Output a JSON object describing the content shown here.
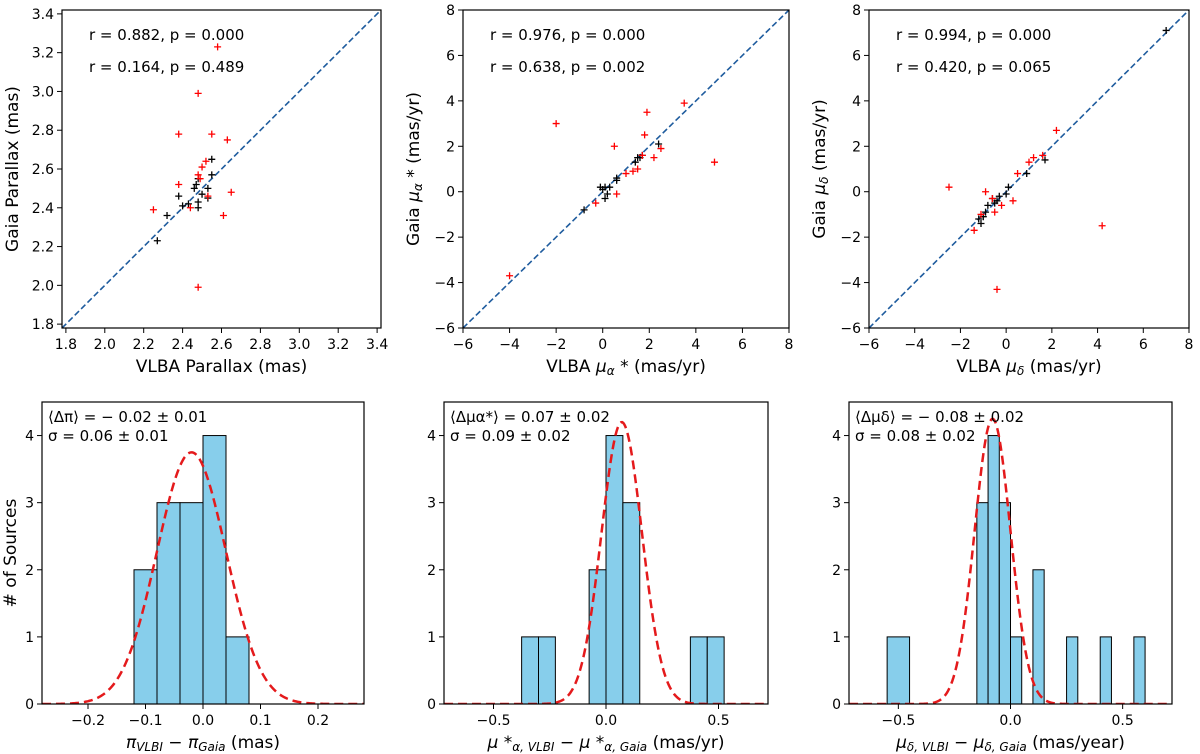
{
  "chart_data": [
    {
      "type": "scatter",
      "xlabel": "VLBA Parallax (mas)",
      "ylabel": "Gaia Parallax (mas)",
      "xlim": [
        1.78,
        3.42
      ],
      "ylim": [
        1.78,
        3.42
      ],
      "xticks": [
        "1.8",
        "2.0",
        "2.2",
        "2.4",
        "2.6",
        "2.8",
        "3.0",
        "3.2",
        "3.4"
      ],
      "yticks": [
        "1.8",
        "2.0",
        "2.2",
        "2.4",
        "2.6",
        "2.8",
        "3.0",
        "3.2",
        "3.4"
      ],
      "annotations": [
        {
          "text": "r = 0.882, p = 0.000",
          "color": "#000000"
        },
        {
          "text": "r = 0.164, p = 0.489",
          "color": "#ff0000"
        }
      ],
      "identity_line": true,
      "series": [
        {
          "color": "#000000",
          "marker": "+",
          "points": [
            [
              2.27,
              2.23
            ],
            [
              2.32,
              2.36
            ],
            [
              2.38,
              2.46
            ],
            [
              2.4,
              2.41
            ],
            [
              2.43,
              2.42
            ],
            [
              2.46,
              2.5
            ],
            [
              2.47,
              2.52
            ],
            [
              2.48,
              2.55
            ],
            [
              2.48,
              2.43
            ],
            [
              2.48,
              2.4
            ],
            [
              2.5,
              2.47
            ],
            [
              2.53,
              2.5
            ],
            [
              2.53,
              2.45
            ],
            [
              2.55,
              2.57
            ],
            [
              2.55,
              2.65
            ]
          ]
        },
        {
          "color": "#ff0000",
          "marker": "+",
          "points": [
            [
              2.25,
              2.39
            ],
            [
              2.38,
              2.52
            ],
            [
              2.38,
              2.78
            ],
            [
              2.44,
              2.4
            ],
            [
              2.48,
              2.99
            ],
            [
              2.48,
              1.99
            ],
            [
              2.48,
              2.57
            ],
            [
              2.49,
              2.55
            ],
            [
              2.5,
              2.61
            ],
            [
              2.52,
              2.64
            ],
            [
              2.53,
              2.46
            ],
            [
              2.55,
              2.78
            ],
            [
              2.58,
              3.23
            ],
            [
              2.61,
              2.36
            ],
            [
              2.63,
              2.75
            ],
            [
              2.65,
              2.48
            ]
          ]
        }
      ]
    },
    {
      "type": "scatter",
      "xlabel": "VLBA μα* (mas/yr)",
      "ylabel": "Gaia μα* (mas/yr)",
      "xlim": [
        -6,
        8
      ],
      "ylim": [
        -6,
        8
      ],
      "xticks": [
        "−6",
        "−4",
        "−2",
        "0",
        "2",
        "4",
        "6",
        "8"
      ],
      "yticks": [
        "−6",
        "−4",
        "−2",
        "0",
        "2",
        "4",
        "6",
        "8"
      ],
      "annotations": [
        {
          "text": "r = 0.976, p = 0.000",
          "color": "#000000"
        },
        {
          "text": "r = 0.638, p = 0.002",
          "color": "#ff0000"
        }
      ],
      "identity_line": true,
      "series": [
        {
          "color": "#000000",
          "marker": "+",
          "points": [
            [
              -0.8,
              -0.8
            ],
            [
              -0.1,
              0.2
            ],
            [
              0.0,
              0.1
            ],
            [
              0.1,
              0.2
            ],
            [
              0.3,
              0.2
            ],
            [
              0.1,
              -0.3
            ],
            [
              0.6,
              0.5
            ],
            [
              0.6,
              0.6
            ],
            [
              1.4,
              1.3
            ],
            [
              1.5,
              1.5
            ],
            [
              1.6,
              1.5
            ],
            [
              1.7,
              1.6
            ],
            [
              2.4,
              2.1
            ],
            [
              0.2,
              -0.1
            ]
          ]
        },
        {
          "color": "#ff0000",
          "marker": "+",
          "points": [
            [
              -4.0,
              -3.7
            ],
            [
              -2.0,
              3.0
            ],
            [
              -0.3,
              -0.5
            ],
            [
              0.5,
              2.0
            ],
            [
              0.6,
              -0.1
            ],
            [
              1.0,
              0.8
            ],
            [
              1.3,
              0.9
            ],
            [
              1.5,
              1.0
            ],
            [
              1.8,
              2.5
            ],
            [
              1.9,
              3.5
            ],
            [
              2.2,
              1.5
            ],
            [
              2.5,
              1.9
            ],
            [
              3.5,
              3.9
            ],
            [
              4.8,
              1.3
            ],
            [
              1.7,
              1.6
            ]
          ]
        }
      ]
    },
    {
      "type": "scatter",
      "xlabel": "VLBA μδ (mas/yr)",
      "ylabel": "Gaia μδ (mas/yr)",
      "xlim": [
        -6,
        8
      ],
      "ylim": [
        -6,
        8
      ],
      "xticks": [
        "−6",
        "−4",
        "−2",
        "0",
        "2",
        "4",
        "6",
        "8"
      ],
      "yticks": [
        "−6",
        "−4",
        "−2",
        "0",
        "2",
        "4",
        "6",
        "8"
      ],
      "annotations": [
        {
          "text": "r = 0.994, p = 0.000",
          "color": "#000000"
        },
        {
          "text": "r = 0.420, p = 0.065",
          "color": "#ff0000"
        }
      ],
      "identity_line": true,
      "series": [
        {
          "color": "#000000",
          "marker": "+",
          "points": [
            [
              7.0,
              7.1
            ],
            [
              1.7,
              1.4
            ],
            [
              0.9,
              0.8
            ],
            [
              0.1,
              0.2
            ],
            [
              -0.3,
              -0.2
            ],
            [
              -0.4,
              -0.4
            ],
            [
              -0.5,
              -0.5
            ],
            [
              -0.6,
              -0.3
            ],
            [
              -0.8,
              -0.6
            ],
            [
              -0.9,
              -0.9
            ],
            [
              -1.0,
              -1.1
            ],
            [
              -1.1,
              -1.4
            ],
            [
              -1.2,
              -1.2
            ],
            [
              0.0,
              -0.1
            ]
          ]
        },
        {
          "color": "#ff0000",
          "marker": "+",
          "points": [
            [
              -2.5,
              0.2
            ],
            [
              -1.4,
              -1.7
            ],
            [
              -1.1,
              -1.0
            ],
            [
              -0.9,
              0.0
            ],
            [
              -0.5,
              -0.9
            ],
            [
              -0.4,
              -4.3
            ],
            [
              -0.2,
              -0.6
            ],
            [
              0.3,
              -0.4
            ],
            [
              0.5,
              0.8
            ],
            [
              1.0,
              1.3
            ],
            [
              1.2,
              1.5
            ],
            [
              1.6,
              1.6
            ],
            [
              2.2,
              2.7
            ],
            [
              4.2,
              -1.5
            ],
            [
              -0.6,
              -0.3
            ]
          ]
        }
      ]
    },
    {
      "type": "bar",
      "xlabel": "π_VLBI − π_Gaia (mas)",
      "ylabel": "# of Sources",
      "xlim": [
        -0.28,
        0.28
      ],
      "ylim": [
        0,
        4.5
      ],
      "xticks": [
        "−0.2",
        "−0.1",
        "0.0",
        "0.1",
        "0.2"
      ],
      "yticks": [
        "0",
        "1",
        "2",
        "3",
        "4"
      ],
      "annotations": [
        {
          "text": "⟨Δπ⟩ = − 0.02 ± 0.01"
        },
        {
          "text": "σ = 0.06 ± 0.01"
        }
      ],
      "bins": [
        [
          -0.12,
          -0.08,
          2
        ],
        [
          -0.08,
          -0.04,
          3
        ],
        [
          -0.04,
          0.0,
          3
        ],
        [
          0.0,
          0.04,
          4
        ],
        [
          0.04,
          0.08,
          1
        ]
      ],
      "fit": {
        "mean": -0.02,
        "sigma": 0.06,
        "amplitude": 3.75,
        "color": "#e41a1c"
      }
    },
    {
      "type": "bar",
      "xlabel": "μ*α,VLBI − μ*α,Gaia (mas/yr)",
      "ylabel": "",
      "xlim": [
        -0.72,
        0.72
      ],
      "ylim": [
        0,
        4.5
      ],
      "xticks": [
        "−0.5",
        "0.0",
        "0.5"
      ],
      "yticks": [
        "0",
        "1",
        "2",
        "3",
        "4"
      ],
      "annotations": [
        {
          "text": "⟨Δμα*⟩ = 0.07 ± 0.02"
        },
        {
          "text": "σ = 0.09 ± 0.02"
        }
      ],
      "bins": [
        [
          -0.375,
          -0.3,
          1
        ],
        [
          -0.3,
          -0.225,
          1
        ],
        [
          -0.075,
          0.0,
          2
        ],
        [
          0.0,
          0.075,
          4
        ],
        [
          0.075,
          0.15,
          3
        ],
        [
          0.375,
          0.45,
          1
        ],
        [
          0.45,
          0.525,
          1
        ]
      ],
      "fit": {
        "mean": 0.07,
        "sigma": 0.09,
        "amplitude": 4.2,
        "color": "#e41a1c"
      }
    },
    {
      "type": "bar",
      "xlabel": "μδ,VLBI − μδ,Gaia (mas/year)",
      "ylabel": "",
      "xlim": [
        -0.72,
        0.72
      ],
      "ylim": [
        0,
        4.5
      ],
      "xticks": [
        "−0.5",
        "0.0",
        "0.5"
      ],
      "yticks": [
        "0",
        "1",
        "2",
        "3",
        "4"
      ],
      "annotations": [
        {
          "text": "⟨Δμδ⟩ = − 0.08 ± 0.02"
        },
        {
          "text": "σ = 0.08 ± 0.02"
        }
      ],
      "bins": [
        [
          -0.55,
          -0.45,
          1
        ],
        [
          -0.15,
          -0.1,
          3
        ],
        [
          -0.1,
          -0.05,
          4
        ],
        [
          -0.05,
          0.0,
          3
        ],
        [
          0.0,
          0.05,
          1
        ],
        [
          0.1,
          0.15,
          2
        ],
        [
          0.25,
          0.3,
          1
        ],
        [
          0.4,
          0.45,
          1
        ],
        [
          0.55,
          0.6,
          1
        ]
      ],
      "fit": {
        "mean": -0.08,
        "sigma": 0.08,
        "amplitude": 4.25,
        "color": "#e41a1c"
      }
    }
  ]
}
